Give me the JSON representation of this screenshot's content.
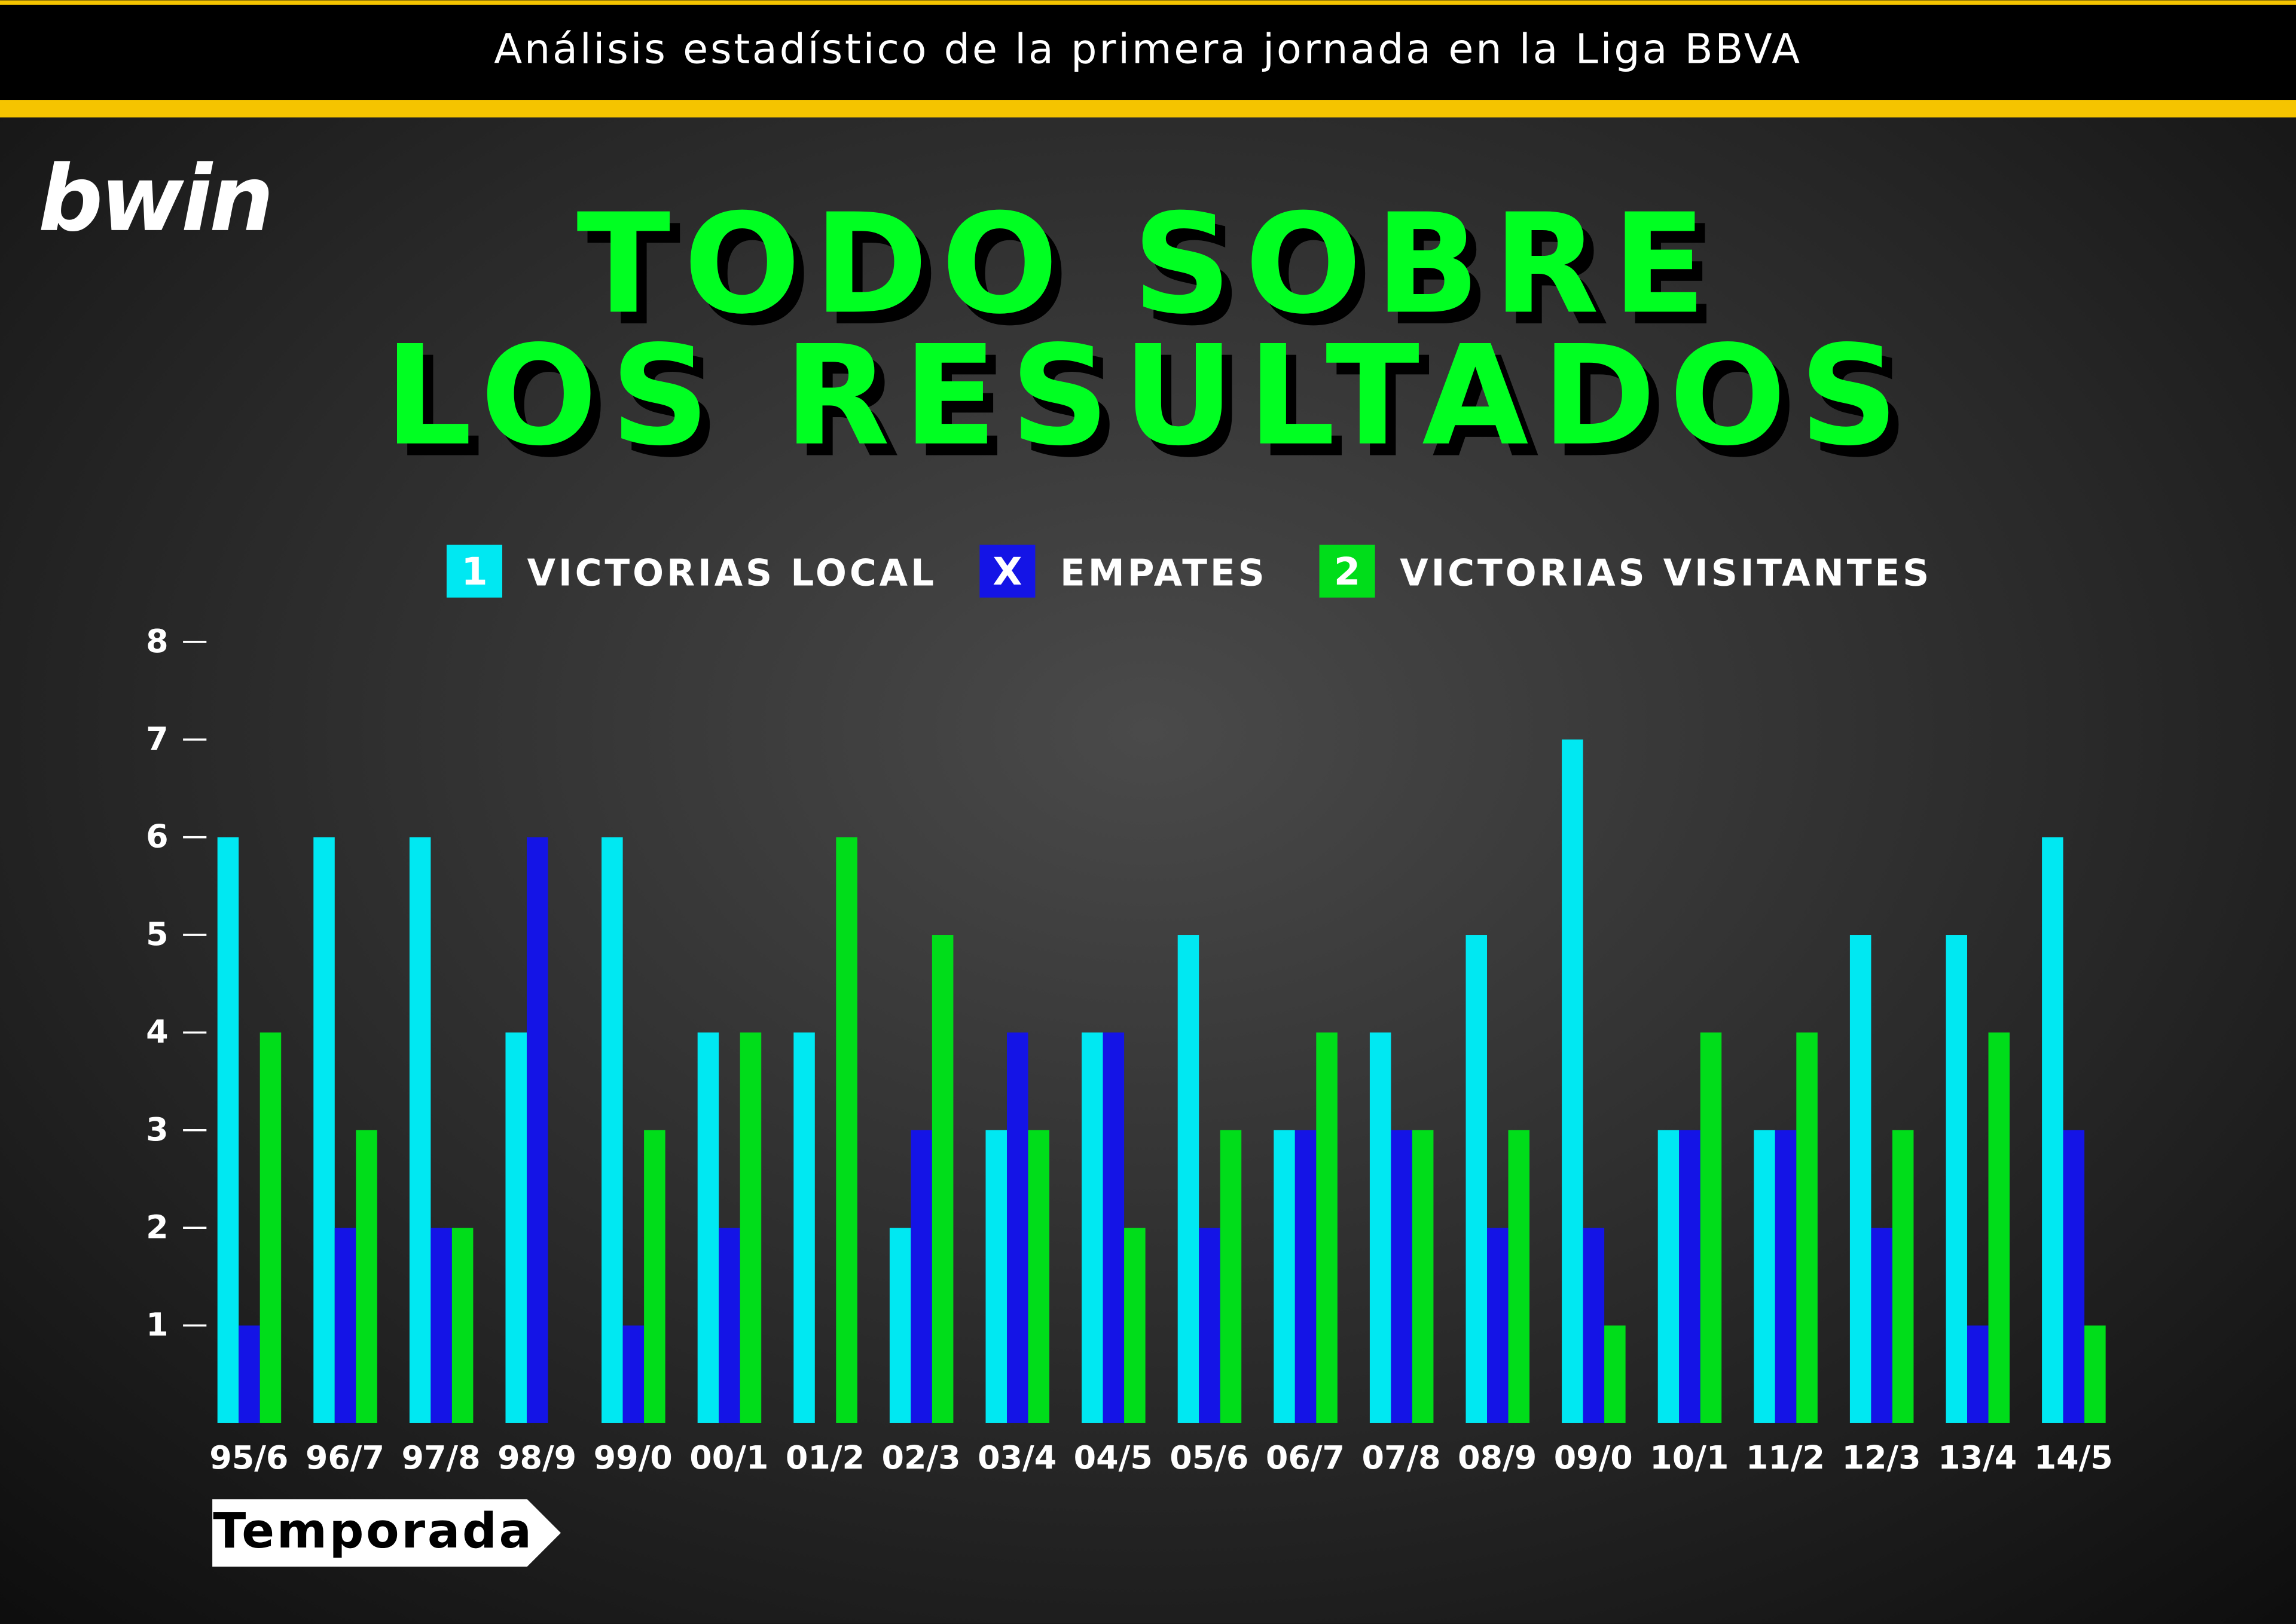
{
  "header": "Análisis estadístico de la primera jornada en la Liga BBVA",
  "logo": "bwin",
  "chart_data": {
    "type": "bar",
    "title": [
      "TODO SOBRE",
      "LOS RESULTADOS"
    ],
    "x_label": "Temporada",
    "categories": [
      "95/6",
      "96/7",
      "97/8",
      "98/9",
      "99/0",
      "00/1",
      "01/2",
      "02/3",
      "03/4",
      "04/5",
      "05/6",
      "06/7",
      "07/8",
      "08/9",
      "09/0",
      "10/1",
      "11/2",
      "12/3",
      "13/4",
      "14/5"
    ],
    "series": [
      {
        "name": "VICTORIAS LOCAL",
        "marker": "1",
        "color": "#00e8f2",
        "values": [
          6,
          6,
          6,
          4,
          6,
          4,
          4,
          2,
          3,
          4,
          5,
          3,
          4,
          5,
          7,
          3,
          3,
          5,
          5,
          6
        ]
      },
      {
        "name": "EMPATES",
        "marker": "X",
        "color": "#1414e6",
        "values": [
          1,
          2,
          2,
          6,
          1,
          2,
          0,
          3,
          4,
          4,
          2,
          3,
          3,
          2,
          2,
          3,
          3,
          2,
          1,
          3
        ]
      },
      {
        "name": "VICTORIAS VISITANTES",
        "marker": "2",
        "color": "#00dd1a",
        "values": [
          4,
          3,
          2,
          0,
          3,
          4,
          6,
          5,
          3,
          2,
          3,
          4,
          3,
          3,
          1,
          4,
          4,
          3,
          4,
          1
        ]
      }
    ],
    "ylim": [
      0,
      8
    ],
    "yticks": [
      1,
      2,
      3,
      4,
      5,
      6,
      7,
      8
    ]
  }
}
